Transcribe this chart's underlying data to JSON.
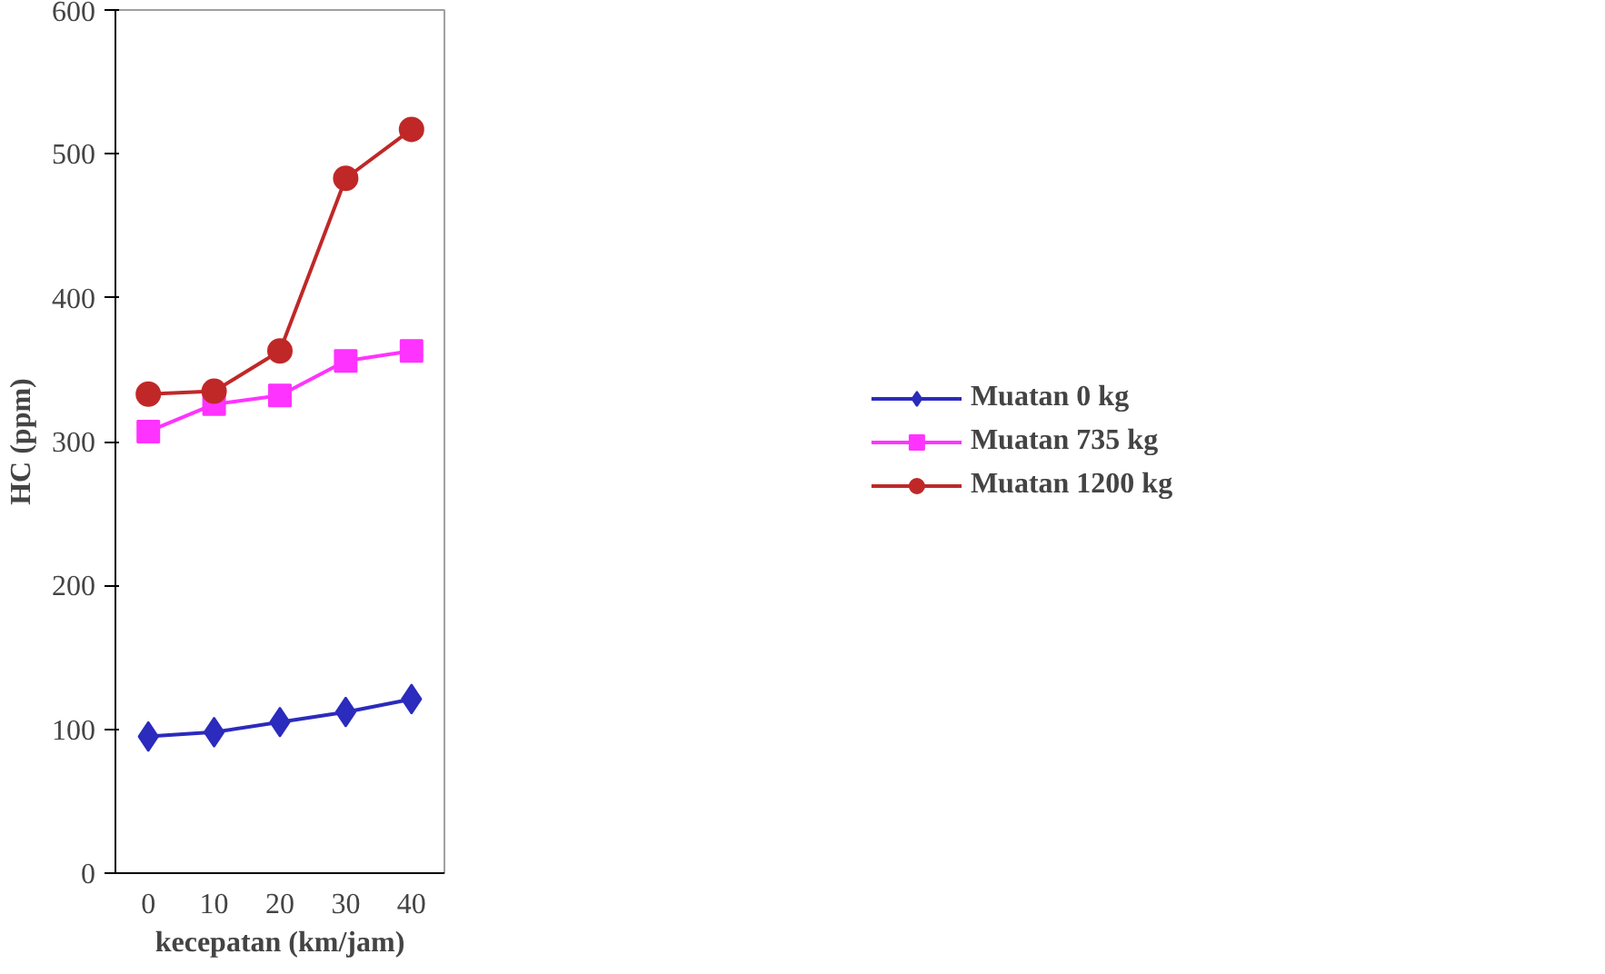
{
  "chart_data": {
    "type": "line",
    "xlabel": "kecepatan (km/jam)",
    "ylabel": "HC (ppm)",
    "categories": [
      "0",
      "10",
      "20",
      "30",
      "40"
    ],
    "series": [
      {
        "name": "Muatan 0 kg",
        "color": "#2b2bbd",
        "marker": "diamond",
        "values": [
          95,
          98,
          105,
          112,
          121
        ]
      },
      {
        "name": "Muatan 735 kg",
        "color": "#ff33ff",
        "marker": "square",
        "values": [
          307,
          326,
          332,
          356,
          363
        ]
      },
      {
        "name": "Muatan 1200 kg",
        "color": "#c02828",
        "marker": "circle",
        "values": [
          333,
          335,
          363,
          483,
          517
        ]
      }
    ],
    "ylim": [
      0,
      600
    ],
    "yticks": [
      0,
      100,
      200,
      300,
      400,
      500,
      600
    ],
    "grid": false,
    "legend": "right",
    "line_style": "solid"
  }
}
